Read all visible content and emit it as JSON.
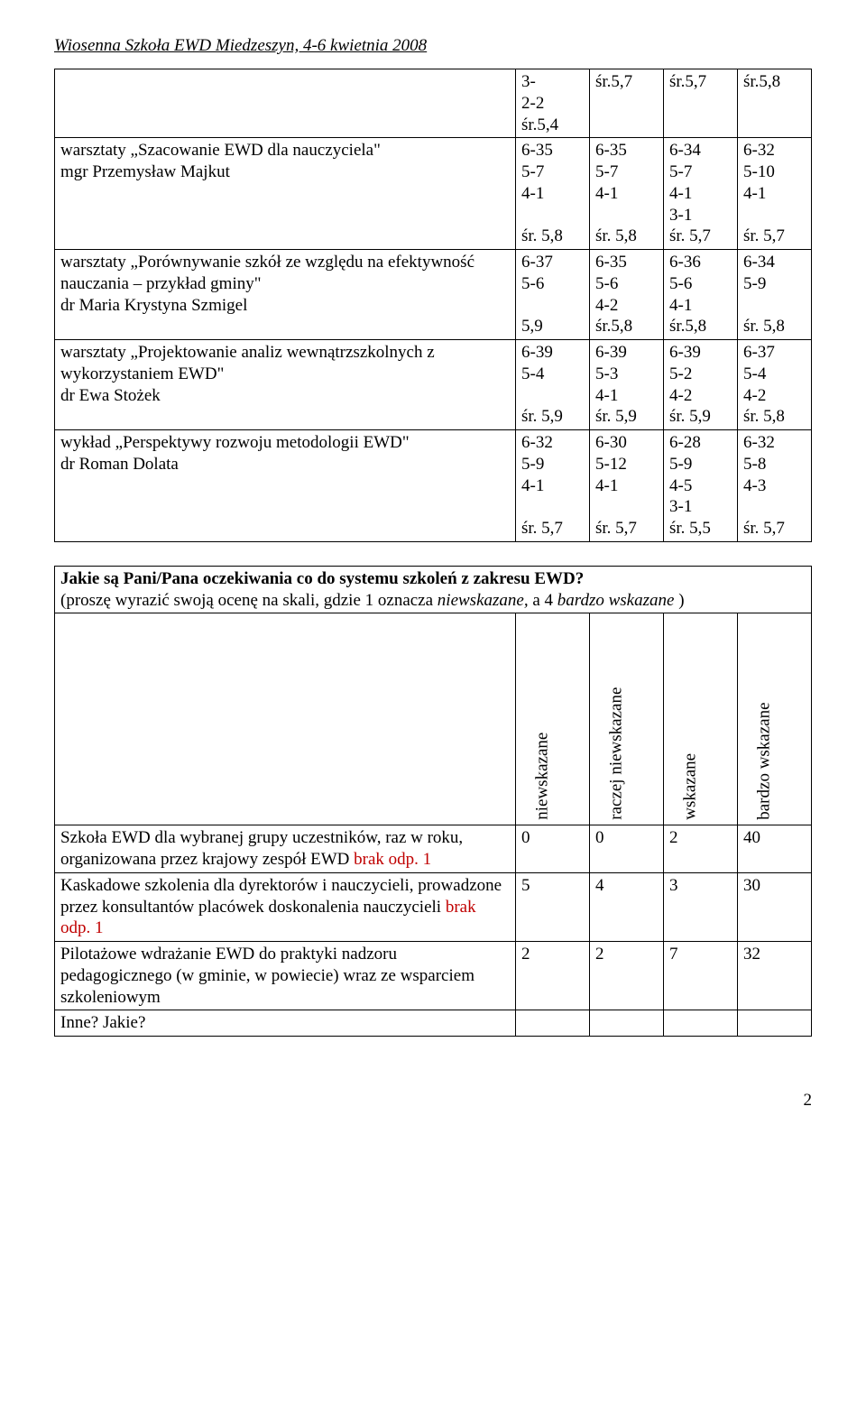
{
  "header": "Wiosenna Szkoła EWD Miedzeszyn, 4-6 kwietnia 2008",
  "table1": {
    "rows": [
      {
        "label": "",
        "c1": "3-\n2-2\nśr.5,4",
        "c2": "śr.5,7",
        "c3": "śr.5,7",
        "c4": "śr.5,8"
      },
      {
        "label": "warsztaty „Szacowanie EWD dla nauczyciela\"\nmgr Przemysław Majkut",
        "c1": "6-35\n5-7\n4-1\n\nśr. 5,8",
        "c2": "6-35\n5-7\n4-1\n\nśr. 5,8",
        "c3": "6-34\n5-7\n4-1\n3-1\nśr. 5,7",
        "c4": "6-32\n5-10\n4-1\n\nśr. 5,7"
      },
      {
        "label": "warsztaty „Porównywanie szkół ze względu na efektywność nauczania – przykład gminy\"\ndr Maria Krystyna Szmigel",
        "c1": "6-37\n5-6\n\n5,9",
        "c2": "6-35\n5-6\n4-2\nśr.5,8",
        "c3": "6-36\n5-6\n4-1\nśr.5,8",
        "c4": "6-34\n5-9\n\nśr. 5,8"
      },
      {
        "label": "warsztaty „Projektowanie analiz wewnątrzszkolnych z wykorzystaniem EWD\"\ndr Ewa Stożek",
        "c1": "6-39\n5-4\n\nśr. 5,9",
        "c2": "6-39\n5-3\n4-1\nśr. 5,9",
        "c3": "6-39\n5-2\n4-2\nśr. 5,9",
        "c4": "6-37\n5-4\n4-2\nśr. 5,8"
      },
      {
        "label": "wykład „Perspektywy rozwoju metodologii EWD\"\ndr Roman Dolata",
        "c1": "6-32\n5-9\n4-1\n\nśr. 5,7",
        "c2": "6-30\n5-12\n4-1\n\nśr. 5,7",
        "c3": "6-28\n5-9\n4-5\n3-1\nśr. 5,5",
        "c4": "6-32\n5-8\n4-3\n\nśr. 5,7"
      }
    ]
  },
  "question": {
    "title": "Jakie są Pani/Pana oczekiwania co do systemu szkoleń z zakresu EWD?",
    "sub_prefix": "(proszę wyrazić swoją ocenę na skali, gdzie 1 oznacza ",
    "sub_i1": "niewskazane, ",
    "sub_mid": " a  4  ",
    "sub_i2": "bardzo wskazane ",
    "sub_suffix": ")"
  },
  "table2": {
    "headers": [
      "niewskazane",
      "raczej niewskazane",
      "wskazane",
      "bardzo wskazane"
    ],
    "rows": [
      {
        "label_pre": "Szkoła EWD dla wybranej grupy uczestników, raz w roku, organizowana przez krajowy zespół EWD ",
        "label_red": "brak odp. 1",
        "v": [
          "0",
          "0",
          "2",
          "40"
        ]
      },
      {
        "label_pre": "Kaskadowe szkolenia dla dyrektorów i nauczycieli, prowadzone przez konsultantów placówek doskonalenia nauczycieli ",
        "label_red": "brak odp. 1",
        "v": [
          "5",
          "4",
          "3",
          "30"
        ]
      },
      {
        "label_pre": "Pilotażowe wdrażanie EWD do praktyki nadzoru pedagogicznego (w gminie, w powiecie) wraz ze wsparciem szkoleniowym",
        "label_red": "",
        "v": [
          "2",
          "2",
          "7",
          "32"
        ]
      },
      {
        "label_pre": "Inne? Jakie?",
        "label_red": "",
        "v": [
          "",
          "",
          "",
          ""
        ]
      }
    ]
  },
  "pagenum": "2"
}
